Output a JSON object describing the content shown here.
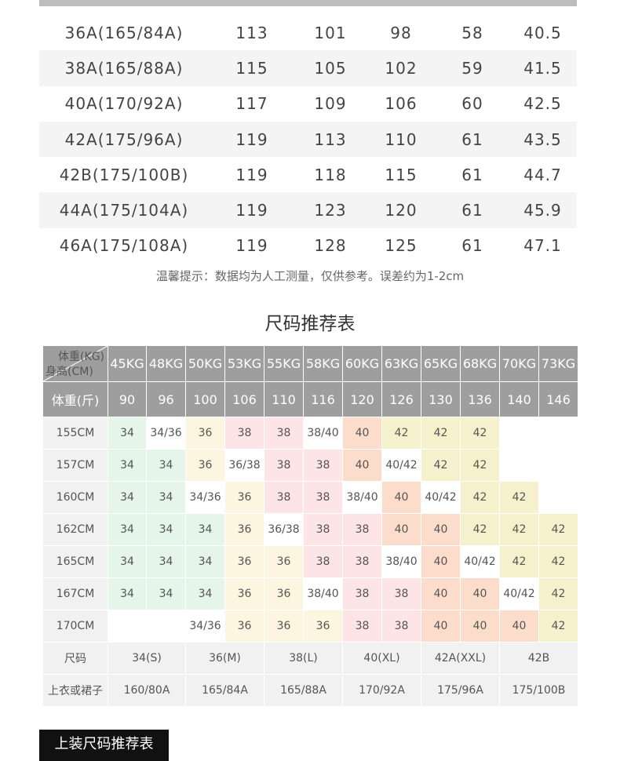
{
  "measurement_table": {
    "rows": [
      [
        "36A(165/84A)",
        "113",
        "101",
        "98",
        "58",
        "40.5"
      ],
      [
        "38A(165/88A)",
        "115",
        "105",
        "102",
        "59",
        "41.5"
      ],
      [
        "40A(170/92A)",
        "117",
        "109",
        "106",
        "60",
        "42.5"
      ],
      [
        "42A(175/96A)",
        "119",
        "113",
        "110",
        "61",
        "43.5"
      ],
      [
        "42B(175/100B)",
        "119",
        "118",
        "115",
        "61",
        "44.7"
      ],
      [
        "44A(175/104A)",
        "119",
        "123",
        "120",
        "61",
        "45.9"
      ],
      [
        "46A(175/108A)",
        "119",
        "128",
        "125",
        "61",
        "47.1"
      ]
    ],
    "note": "温馨提示：数据均为人工测量，仅供参考。误差约为1-2cm"
  },
  "recommend": {
    "title": "尺码推荐表",
    "corner_top": "体重(KG)",
    "corner_bottom": "身高(CM)",
    "weights_kg": [
      "45KG",
      "48KG",
      "50KG",
      "53KG",
      "55KG",
      "58KG",
      "60KG",
      "63KG",
      "65KG",
      "68KG",
      "70KG",
      "73KG"
    ],
    "jin_label": "体重(斤)",
    "weights_jin": [
      "90",
      "96",
      "100",
      "106",
      "110",
      "116",
      "120",
      "126",
      "130",
      "136",
      "140",
      "146"
    ],
    "rows": [
      {
        "height": "155CM",
        "cells": [
          "34",
          "34/36",
          "36",
          "38",
          "38",
          "38/40",
          "40",
          "42",
          "42",
          "42",
          "",
          ""
        ]
      },
      {
        "height": "157CM",
        "cells": [
          "34",
          "34",
          "36",
          "36/38",
          "38",
          "38",
          "40",
          "40/42",
          "42",
          "42",
          "",
          ""
        ]
      },
      {
        "height": "160CM",
        "cells": [
          "34",
          "34",
          "34/36",
          "36",
          "38",
          "38",
          "38/40",
          "40",
          "40/42",
          "42",
          "42",
          ""
        ]
      },
      {
        "height": "162CM",
        "cells": [
          "34",
          "34",
          "34",
          "36",
          "36/38",
          "38",
          "38",
          "40",
          "40",
          "42",
          "42",
          "42"
        ]
      },
      {
        "height": "165CM",
        "cells": [
          "34",
          "34",
          "34",
          "36",
          "36",
          "38",
          "38",
          "38/40",
          "40",
          "40/42",
          "42",
          "42"
        ]
      },
      {
        "height": "167CM",
        "cells": [
          "34",
          "34",
          "34",
          "36",
          "36",
          "38/40",
          "38",
          "38",
          "40",
          "40",
          "40/42",
          "42"
        ]
      },
      {
        "height": "170CM",
        "cells": [
          "",
          "",
          "34/36",
          "36",
          "36",
          "36",
          "38",
          "38",
          "40",
          "40",
          "40",
          "42"
        ]
      }
    ],
    "size_label": "尺码",
    "sizes": [
      "34(S)",
      "36(M)",
      "38(L)",
      "40(XL)",
      "42A(XXL)",
      "42B"
    ],
    "top_label": "上衣或裙子",
    "tops": [
      "160/80A",
      "165/84A",
      "165/88A",
      "170/92A",
      "175/96A",
      "175/100B"
    ],
    "colors": {
      "34": "#e6f5e9",
      "36": "#fcf5df",
      "38": "#fde4e6",
      "40": "#fcdcca",
      "42": "#f6f1cd",
      "mixed": "#ffffff"
    }
  },
  "section_tag": "上装尺码推荐表"
}
